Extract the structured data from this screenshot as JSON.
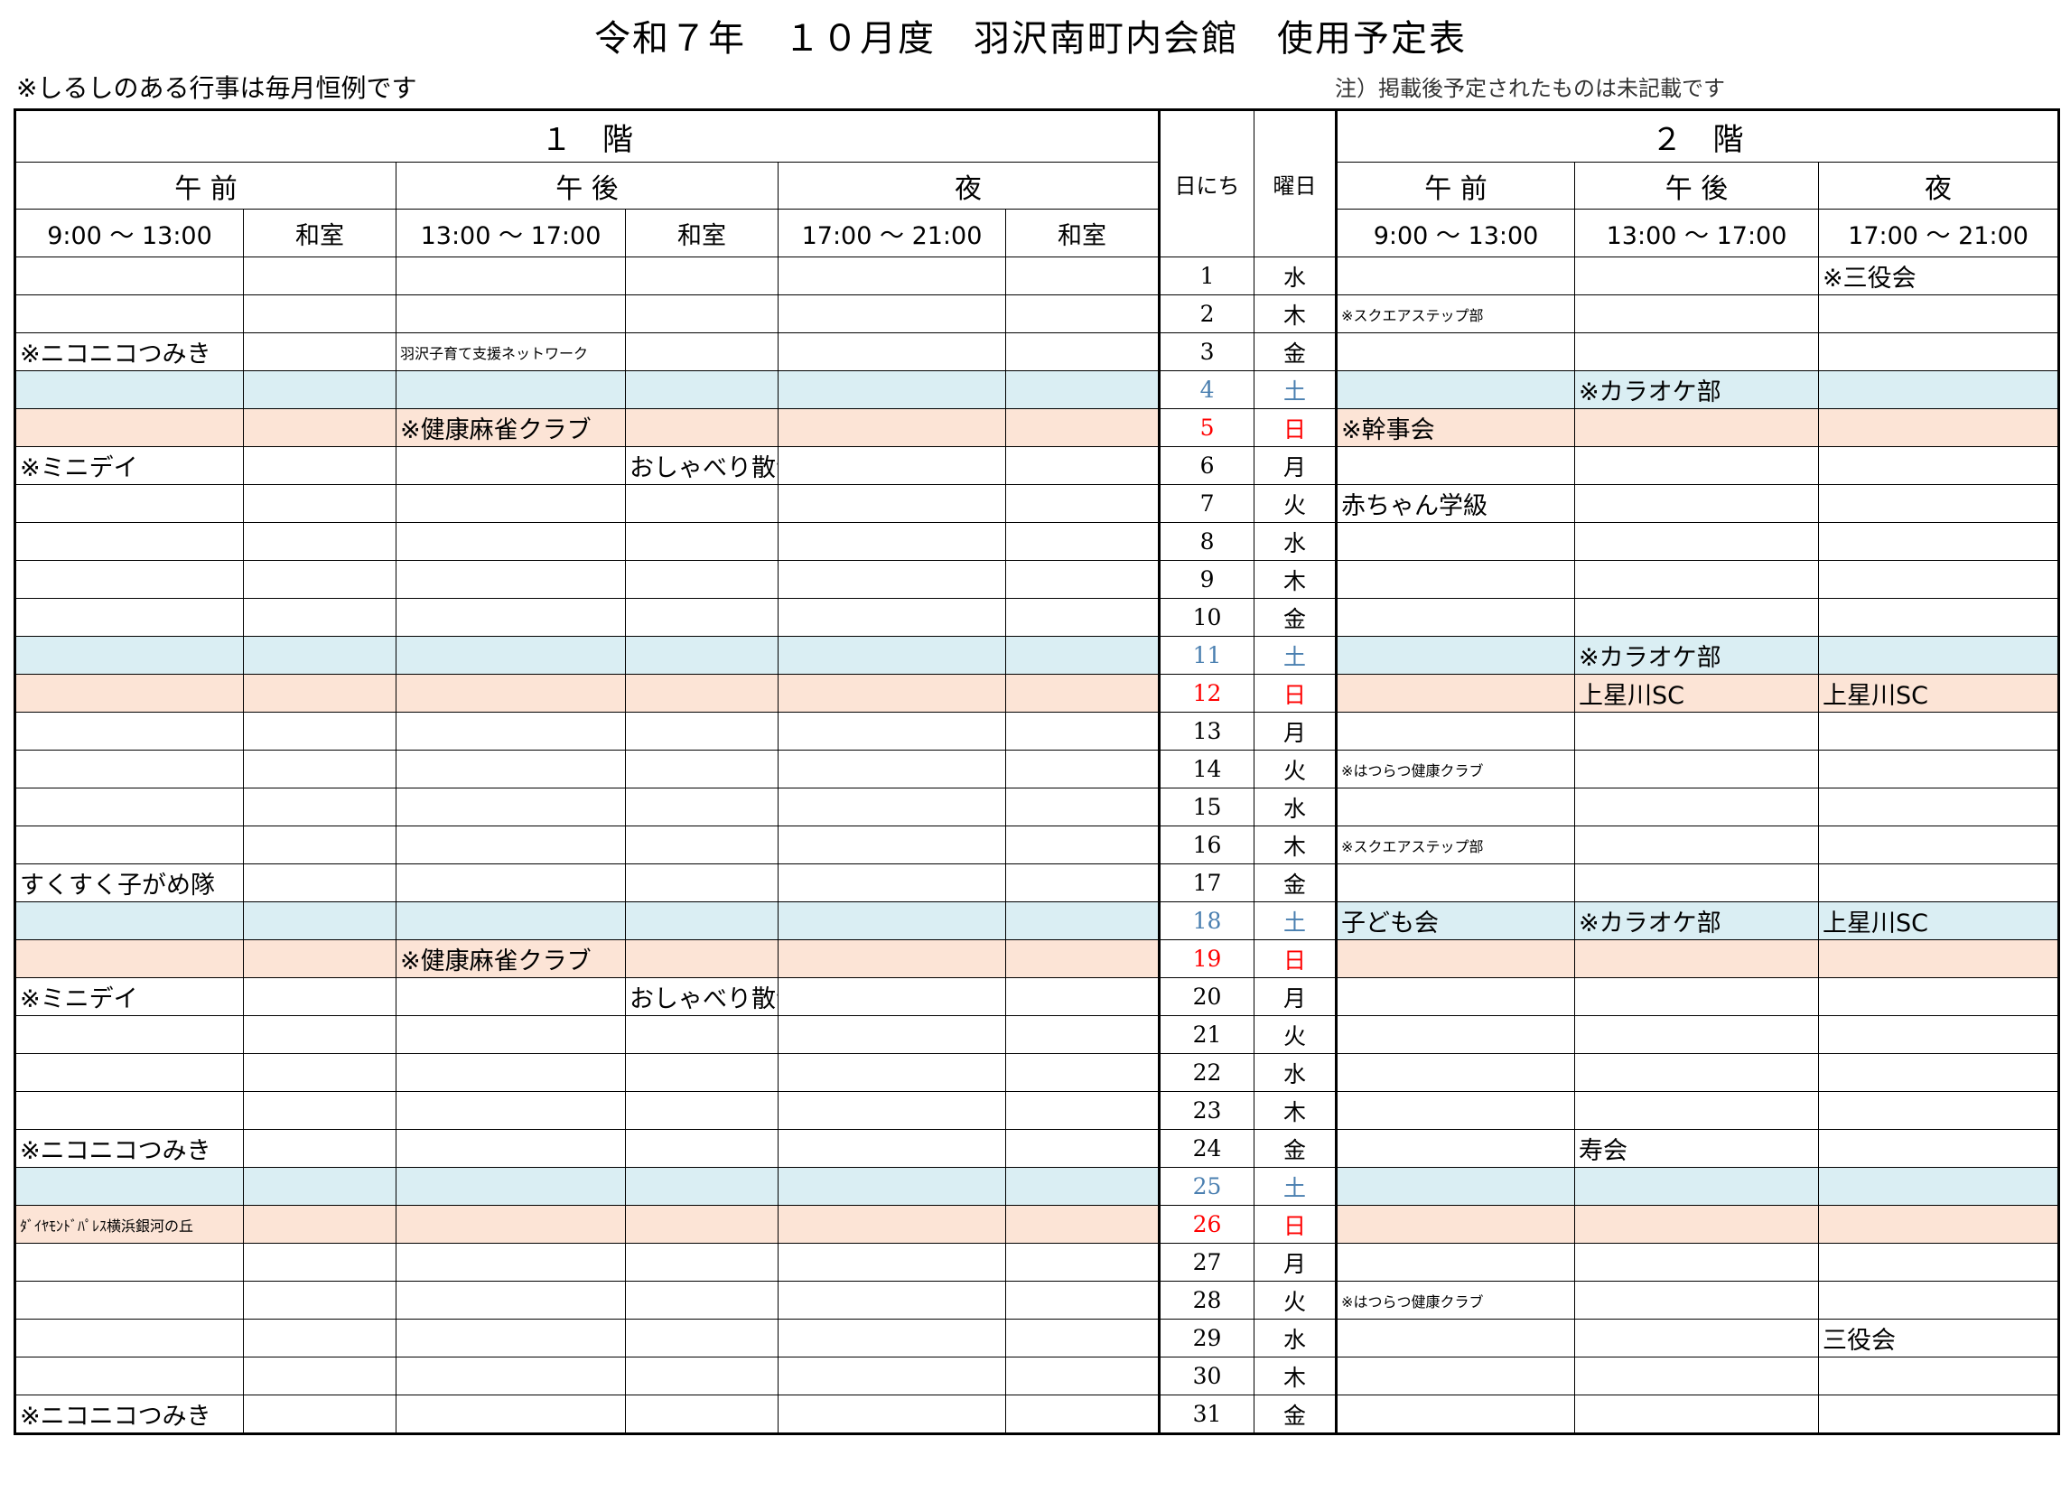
{
  "header": {
    "title": "令和７年　１０月度　羽沢南町内会館　使用予定表",
    "note_left": "※しるしのある行事は毎月恒例です",
    "note_right": "注）掲載後予定されたものは未記載です"
  },
  "table": {
    "floor1": "１　階",
    "floor2": "２　階",
    "day_label": "日にち",
    "weekday_label": "曜日",
    "periods": [
      "午 前",
      "午 後",
      "夜",
      "午 前",
      "午 後",
      "夜"
    ],
    "times": [
      "9:00 〜 13:00",
      "和室",
      "13:00 〜 17:00",
      "和室",
      "17:00 〜 21:00",
      "和室",
      "9:00 〜 13:00",
      "13:00 〜 17:00",
      "17:00 〜 21:00"
    ],
    "rows": [
      {
        "day": 1,
        "weekday": "水",
        "cells": [
          null,
          null,
          null,
          null,
          null,
          null,
          null,
          null,
          "※三役会"
        ]
      },
      {
        "day": 2,
        "weekday": "木",
        "cells": [
          null,
          null,
          null,
          null,
          null,
          null,
          "※スクエアステップ部",
          null,
          null
        ]
      },
      {
        "day": 3,
        "weekday": "金",
        "cells": [
          "※ニコニコつみき",
          null,
          "羽沢子育て支援ネットワーク",
          null,
          null,
          null,
          null,
          null,
          null
        ]
      },
      {
        "day": 4,
        "weekday": "土",
        "shade": "#daeef3",
        "color": "#4a7fb0",
        "cells": [
          null,
          null,
          null,
          null,
          null,
          null,
          null,
          "※カラオケ部",
          null
        ]
      },
      {
        "day": 5,
        "weekday": "日",
        "shade": "#fce4d6",
        "color": "#ff0000",
        "cells": [
          null,
          null,
          "※健康麻雀クラブ",
          null,
          null,
          null,
          "※幹事会",
          null,
          null
        ]
      },
      {
        "day": 6,
        "weekday": "月",
        "cells": [
          "※ミニデイ",
          null,
          null,
          "おしゃべり散歩の会",
          null,
          null,
          null,
          null,
          null
        ]
      },
      {
        "day": 7,
        "weekday": "火",
        "cells": [
          null,
          null,
          null,
          null,
          null,
          null,
          "赤ちゃん学級",
          null,
          null
        ]
      },
      {
        "day": 8,
        "weekday": "水",
        "cells": [
          null,
          null,
          null,
          null,
          null,
          null,
          null,
          null,
          null
        ]
      },
      {
        "day": 9,
        "weekday": "木",
        "cells": [
          null,
          null,
          null,
          null,
          null,
          null,
          null,
          null,
          null
        ]
      },
      {
        "day": 10,
        "weekday": "金",
        "cells": [
          null,
          null,
          null,
          null,
          null,
          null,
          null,
          null,
          null
        ]
      },
      {
        "day": 11,
        "weekday": "土",
        "shade": "#daeef3",
        "color": "#4a7fb0",
        "cells": [
          null,
          null,
          null,
          null,
          null,
          null,
          null,
          "※カラオケ部",
          null
        ]
      },
      {
        "day": 12,
        "weekday": "日",
        "shade": "#fce4d6",
        "color": "#ff0000",
        "cells": [
          null,
          null,
          null,
          null,
          null,
          null,
          null,
          "上星川SC",
          "上星川SC"
        ]
      },
      {
        "day": 13,
        "weekday": "月",
        "cells": [
          null,
          null,
          null,
          null,
          null,
          null,
          null,
          null,
          null
        ]
      },
      {
        "day": 14,
        "weekday": "火",
        "cells": [
          null,
          null,
          null,
          null,
          null,
          null,
          "※はつらつ健康クラブ",
          null,
          null
        ]
      },
      {
        "day": 15,
        "weekday": "水",
        "cells": [
          null,
          null,
          null,
          null,
          null,
          null,
          null,
          null,
          null
        ]
      },
      {
        "day": 16,
        "weekday": "木",
        "cells": [
          null,
          null,
          null,
          null,
          null,
          null,
          "※スクエアステップ部",
          null,
          null
        ]
      },
      {
        "day": 17,
        "weekday": "金",
        "cells": [
          "すくすく子がめ隊",
          null,
          null,
          null,
          null,
          null,
          null,
          null,
          null
        ]
      },
      {
        "day": 18,
        "weekday": "土",
        "shade": "#daeef3",
        "color": "#4a7fb0",
        "cells": [
          null,
          null,
          null,
          null,
          null,
          null,
          "子ども会",
          "※カラオケ部",
          "上星川SC"
        ]
      },
      {
        "day": 19,
        "weekday": "日",
        "shade": "#fce4d6",
        "color": "#ff0000",
        "cells": [
          null,
          null,
          "※健康麻雀クラブ",
          null,
          null,
          null,
          null,
          null,
          null
        ]
      },
      {
        "day": 20,
        "weekday": "月",
        "cells": [
          "※ミニデイ",
          null,
          null,
          "おしゃべり散歩の会",
          null,
          null,
          null,
          null,
          null
        ]
      },
      {
        "day": 21,
        "weekday": "火",
        "cells": [
          null,
          null,
          null,
          null,
          null,
          null,
          null,
          null,
          null
        ]
      },
      {
        "day": 22,
        "weekday": "水",
        "cells": [
          null,
          null,
          null,
          null,
          null,
          null,
          null,
          null,
          null
        ]
      },
      {
        "day": 23,
        "weekday": "木",
        "cells": [
          null,
          null,
          null,
          null,
          null,
          null,
          null,
          null,
          null
        ]
      },
      {
        "day": 24,
        "weekday": "金",
        "cells": [
          "※ニコニコつみき",
          null,
          null,
          null,
          null,
          null,
          null,
          "寿会",
          null
        ]
      },
      {
        "day": 25,
        "weekday": "土",
        "shade": "#daeef3",
        "color": "#4a7fb0",
        "cells": [
          null,
          null,
          null,
          null,
          null,
          null,
          null,
          null,
          null
        ]
      },
      {
        "day": 26,
        "weekday": "日",
        "shade": "#fce4d6",
        "color": "#ff0000",
        "cells": [
          "ﾀﾞｲﾔﾓﾝﾄﾞﾊﾟﾚｽ横浜銀河の丘",
          null,
          null,
          null,
          null,
          null,
          null,
          null,
          null
        ]
      },
      {
        "day": 27,
        "weekday": "月",
        "cells": [
          null,
          null,
          null,
          null,
          null,
          null,
          null,
          null,
          null
        ]
      },
      {
        "day": 28,
        "weekday": "火",
        "cells": [
          null,
          null,
          null,
          null,
          null,
          null,
          "※はつらつ健康クラブ",
          null,
          null
        ]
      },
      {
        "day": 29,
        "weekday": "水",
        "cells": [
          null,
          null,
          null,
          null,
          null,
          null,
          null,
          null,
          "三役会"
        ]
      },
      {
        "day": 30,
        "weekday": "木",
        "cells": [
          null,
          null,
          null,
          null,
          null,
          null,
          null,
          null,
          null
        ]
      },
      {
        "day": 31,
        "weekday": "金",
        "cells": [
          "※ニコニコつみき",
          null,
          null,
          null,
          null,
          null,
          null,
          null,
          null
        ]
      }
    ]
  }
}
